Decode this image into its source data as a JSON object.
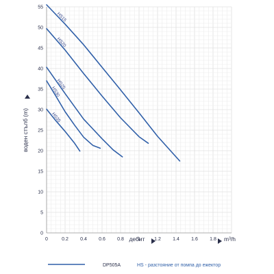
{
  "chart_data": {
    "type": "line",
    "xlabel": "дебит",
    "x_unit": "m³/h",
    "ylabel": "воден стълб (m)",
    "xlim": [
      0,
      2.0
    ],
    "ylim": [
      0,
      55
    ],
    "x_ticks": [
      "0",
      "0.2",
      "0.4",
      "0.6",
      "0.8",
      "1",
      "1.2",
      "1.4",
      "1.6",
      "1.8"
    ],
    "y_ticks": [
      "0",
      "5",
      "10",
      "15",
      "20",
      "25",
      "30",
      "35",
      "40",
      "45",
      "50",
      "55"
    ],
    "grid": true,
    "series": [
      {
        "name": "HS15",
        "x": [
          0,
          0.2,
          0.4,
          0.6,
          0.8,
          1.0,
          1.2,
          1.44
        ],
        "y": [
          55.5,
          50.8,
          45.8,
          40.3,
          34.8,
          29.2,
          23.5,
          17.5
        ]
      },
      {
        "name": "HS20",
        "x": [
          0,
          0.2,
          0.4,
          0.6,
          0.8,
          1.0,
          1.1
        ],
        "y": [
          49.7,
          44.5,
          38.8,
          33.3,
          28.0,
          23.4,
          21.8
        ]
      },
      {
        "name": "HS25",
        "x": [
          0,
          0.2,
          0.4,
          0.6,
          0.72,
          0.82
        ],
        "y": [
          40.3,
          33.9,
          27.7,
          22.9,
          20.2,
          18.5
        ]
      },
      {
        "name": "HS30",
        "x": [
          0,
          0.1,
          0.2,
          0.3,
          0.4,
          0.5,
          0.58
        ],
        "y": [
          37.0,
          33.3,
          29.5,
          26.3,
          23.3,
          21.3,
          20.6
        ]
      },
      {
        "name": "HS35",
        "x": [
          0,
          0.1,
          0.2,
          0.3,
          0.36
        ],
        "y": [
          30.1,
          27.3,
          24.7,
          21.9,
          19.9
        ]
      }
    ],
    "line_color": "#2f5fa8"
  },
  "legend": {
    "model": "DP505A",
    "note": "HS - разстояние от помпа до ежектор"
  }
}
